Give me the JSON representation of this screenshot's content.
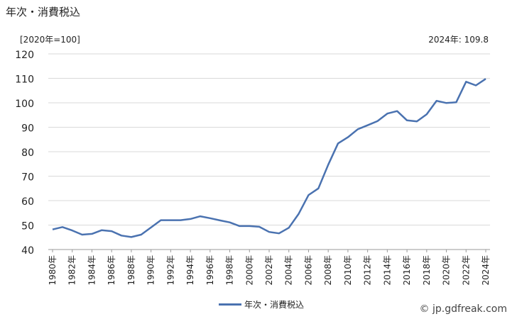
{
  "header": {
    "title": "年次・消費税込",
    "unit": "[2020年=100]",
    "latest": "2024年: 109.8"
  },
  "legend": {
    "label": "年次・消費税込"
  },
  "credit": "© jp.gdfreak.com",
  "colors": {
    "line": "#4a72b0",
    "grid": "#d9d9d9"
  },
  "chart_data": {
    "type": "line",
    "title": "年次・消費税込",
    "ylabel": "[2020年=100]",
    "ylim": [
      40,
      120
    ],
    "yticks": [
      40,
      50,
      60,
      70,
      80,
      90,
      100,
      110,
      120
    ],
    "grid": true,
    "legend_position": "bottom",
    "x": [
      1980,
      1981,
      1982,
      1983,
      1984,
      1985,
      1986,
      1987,
      1988,
      1989,
      1990,
      1991,
      1992,
      1993,
      1994,
      1995,
      1996,
      1997,
      1998,
      1999,
      2000,
      2001,
      2002,
      2003,
      2004,
      2005,
      2006,
      2007,
      2008,
      2009,
      2010,
      2011,
      2012,
      2013,
      2014,
      2015,
      2016,
      2017,
      2018,
      2019,
      2020,
      2021,
      2022,
      2023,
      2024
    ],
    "xtick_labels": [
      "1980年",
      "1982年",
      "1984年",
      "1986年",
      "1988年",
      "1990年",
      "1992年",
      "1994年",
      "1996年",
      "1998年",
      "2000年",
      "2002年",
      "2004年",
      "2006年",
      "2008年",
      "2010年",
      "2012年",
      "2014年",
      "2016年",
      "2018年",
      "2020年",
      "2022年",
      "2024年"
    ],
    "series": [
      {
        "name": "年次・消費税込",
        "values": [
          48.2,
          49.2,
          47.8,
          46.1,
          46.4,
          47.9,
          47.5,
          45.7,
          45.1,
          46.1,
          49.0,
          52.0,
          52.0,
          52.0,
          52.5,
          53.6,
          52.8,
          51.9,
          51.1,
          49.6,
          49.6,
          49.3,
          47.2,
          46.6,
          48.9,
          54.6,
          62.3,
          65.0,
          74.7,
          83.4,
          85.9,
          89.2,
          90.8,
          92.5,
          95.6,
          96.6,
          92.8,
          92.4,
          95.3,
          100.8,
          99.9,
          100.2,
          108.6,
          107.1,
          109.8
        ]
      }
    ]
  }
}
